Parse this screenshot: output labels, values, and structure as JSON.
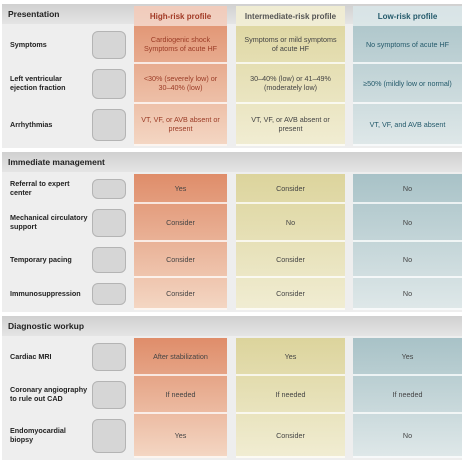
{
  "columns": [
    "High-risk profile",
    "Intermediate-risk profile",
    "Low-risk profile"
  ],
  "sections": [
    {
      "title": "Presentation",
      "rows": [
        {
          "label": "Symptoms",
          "cells": [
            "Cardiogenic shock Symptoms of acute HF",
            "Symptoms or mild symptoms of acute HF",
            "No symptoms of acute HF"
          ]
        },
        {
          "label": "Left ventricular ejection fraction",
          "cells": [
            "<30% (severely low) or 30–40% (low)",
            "30–40% (low) or 41–49% (moderately low)",
            "≥50% (mildly low or normal)"
          ]
        },
        {
          "label": "Arrhythmias",
          "cells": [
            "VT, VF, or AVB absent or present",
            "VT, VF, or AVB absent or present",
            "VT, VF, and AVB absent"
          ]
        }
      ]
    },
    {
      "title": "Immediate management",
      "rows": [
        {
          "label": "Referral to expert center",
          "cells": [
            "Yes",
            "Consider",
            "No"
          ]
        },
        {
          "label": "Mechanical circulatory support",
          "cells": [
            "Consider",
            "No",
            "No"
          ]
        },
        {
          "label": "Temporary pacing",
          "cells": [
            "Consider",
            "Consider",
            "No"
          ]
        },
        {
          "label": "Immunosuppression",
          "cells": [
            "Consider",
            "Consider",
            "No"
          ]
        }
      ]
    },
    {
      "title": "Diagnostic workup",
      "rows": [
        {
          "label": "Cardiac MRI",
          "cells": [
            "After stabilization",
            "Yes",
            "Yes"
          ]
        },
        {
          "label": "Coronary angiography to rule out CAD",
          "cells": [
            "If needed",
            "If needed",
            "If needed"
          ]
        },
        {
          "label": "Endomyocardial biopsy",
          "cells": [
            "Yes",
            "Consider",
            "No"
          ]
        }
      ]
    }
  ]
}
